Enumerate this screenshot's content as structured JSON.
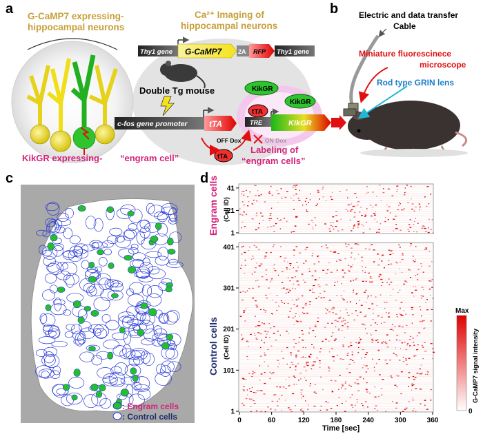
{
  "panel_labels": {
    "a": "a",
    "b": "b",
    "c": "c",
    "d": "d"
  },
  "panel_a": {
    "neurons_title_line1": "G-CaMP7 expressing-",
    "neurons_title_line2": "hippocampal neurons",
    "imaging_title_line1": "Ca²⁺ Imaging of",
    "imaging_title_line2": "hippocampal neurons",
    "thy1_left": "Thy1 gene",
    "gcamp7": "G-CaMP7",
    "twoA": "2A",
    "rfp": "RFP",
    "thy1_right": "Thy1 gene",
    "mouse_label": "Double Tg mouse",
    "kikgr_top": "KikGR",
    "kikgr_mid": "KikGR",
    "cfos_promoter": "c-fos gene promoter",
    "tta_construct": "tTA",
    "tta_protein": "tTA",
    "tta_small": "tTA",
    "tre": "TRE",
    "kikgr_gene": "KikGR",
    "off_dox": "OFF Dox",
    "on_dox": "ON Dox",
    "labeling_line1": "Labeling of",
    "labeling_line2": "“engram cells”",
    "kikgr_expressing": "KikGR expressing-",
    "engram_cell": "“engram cell”"
  },
  "panel_b": {
    "cable_line1": "Electric and data transfer",
    "cable_line2": "Cable",
    "microscope_line1": "Miniature fluorescinece",
    "microscope_line2": "microscope",
    "grin": "Rod type GRIN lens"
  },
  "panel_c": {
    "legend_engram": ": Engram cells",
    "legend_control": ": Control cells"
  },
  "colors": {
    "gold": "#c8a03a",
    "engram_pink": "#d4237a",
    "control_navy": "#1f2a6e",
    "red": "#e01010",
    "grin_blue": "#1a7fc8",
    "roi_blue": "#2a3ad6",
    "roi_green": "#22c02a"
  },
  "chart_data": [
    {
      "type": "heatmap",
      "title": "",
      "ylabel": "Engram cells",
      "ylabel_sub": "(Cell ID)",
      "yticks": [
        "41",
        "21",
        "1"
      ],
      "ylim": [
        1,
        44
      ],
      "xlim": [
        0,
        360
      ]
    },
    {
      "type": "heatmap",
      "ylabel": "Control cells",
      "ylabel_sub": "(Cell ID)",
      "yticks": [
        "401",
        "301",
        "201",
        "101",
        "1"
      ],
      "ylim": [
        1,
        410
      ],
      "xlim": [
        0,
        360
      ],
      "xticks": [
        "0",
        "60",
        "120",
        "180",
        "240",
        "300",
        "360"
      ],
      "xlabel": "Time [sec]",
      "colorbar": {
        "max": "Max",
        "min": "0",
        "label": "G-CaMP7 signal intensity"
      }
    }
  ]
}
